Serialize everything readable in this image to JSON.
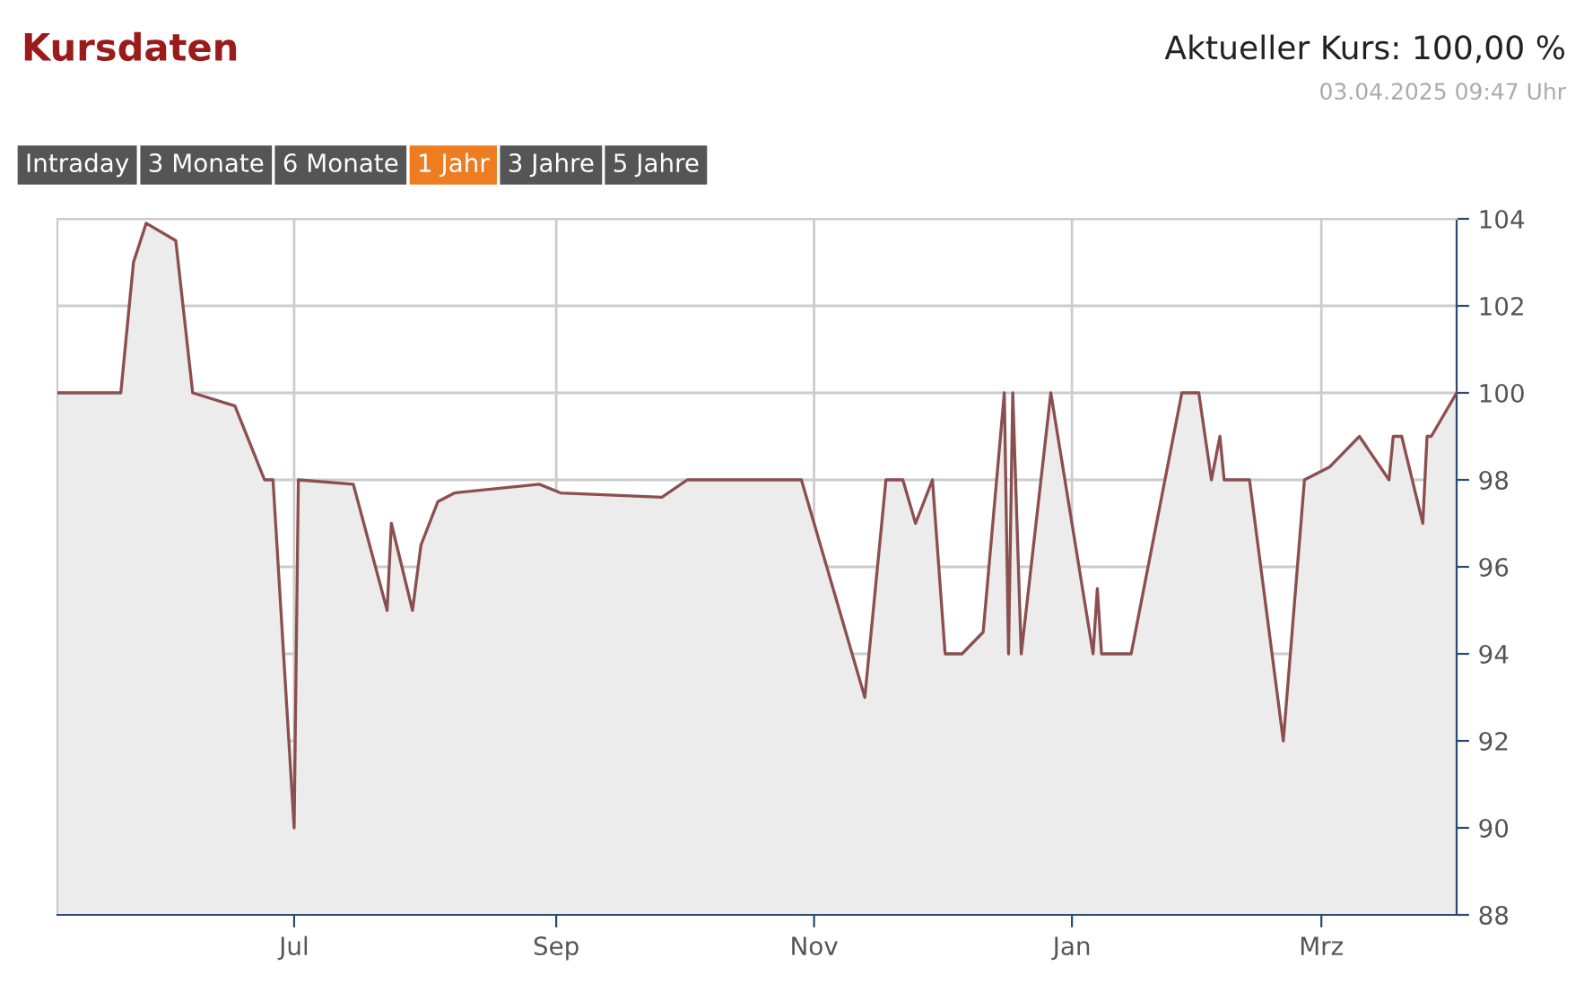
{
  "chart_data": {
    "type": "area",
    "title": "Kursdaten",
    "subtitle": "Aktueller Kurs: 100,00 %",
    "annotations": [
      "03.04.2025 09:47 Uhr",
      "Intraday",
      "3 Monate",
      "6 Monate",
      "1 Jahr",
      "3 Jahre",
      "5 Jahre"
    ],
    "series": [
      {
        "color": "#8b4f4f",
        "x": [
          "2024-05-06",
          "2024-05-21",
          "2024-05-24",
          "2024-05-27",
          "2024-06-03",
          "2024-06-07",
          "2024-06-17",
          "2024-06-24",
          "2024-06-26",
          "2024-07-01",
          "2024-07-02",
          "2024-07-15",
          "2024-07-23",
          "2024-07-24",
          "2024-07-29",
          "2024-07-31",
          "2024-08-04",
          "2024-08-08",
          "2024-08-28",
          "2024-09-02",
          "2024-09-26",
          "2024-10-02",
          "2024-10-29",
          "2024-11-13",
          "2024-11-18",
          "2024-11-22",
          "2024-11-25",
          "2024-11-29",
          "2024-12-02",
          "2024-12-06",
          "2024-12-11",
          "2024-12-16",
          "2024-12-17",
          "2024-12-18",
          "2024-12-20",
          "2024-12-27",
          "2025-01-06",
          "2025-01-07",
          "2025-01-08",
          "2025-01-15",
          "2025-01-27",
          "2025-01-31",
          "2025-02-03",
          "2025-02-05",
          "2025-02-06",
          "2025-02-12",
          "2025-02-20",
          "2025-02-25",
          "2025-03-03",
          "2025-03-10",
          "2025-03-17",
          "2025-03-18",
          "2025-03-20",
          "2025-03-25",
          "2025-03-26",
          "2025-03-27",
          "2025-04-02"
        ],
        "values": [
          100,
          100,
          103,
          103.9,
          103.5,
          100,
          99.7,
          98,
          98,
          90,
          98,
          97.9,
          95,
          97,
          95,
          96.5,
          97.5,
          97.7,
          97.9,
          97.7,
          97.6,
          98,
          98,
          93,
          98,
          98,
          97,
          98,
          94,
          94,
          94.5,
          100,
          94,
          100,
          94,
          100,
          94,
          95.5,
          94,
          94,
          100,
          100,
          98,
          99,
          98,
          98,
          92,
          98,
          98.3,
          99,
          98,
          99,
          99,
          97,
          99,
          99,
          100
        ]
      }
    ],
    "xlim": [
      "2024-05-06",
      "2025-04-02"
    ],
    "xticks": [
      {
        "value": "2024-07-01",
        "label": "Jul"
      },
      {
        "value": "2024-09-01",
        "label": "Sep"
      },
      {
        "value": "2024-11-01",
        "label": "Nov"
      },
      {
        "value": "2025-01-01",
        "label": "Jan"
      },
      {
        "value": "2025-03-01",
        "label": "Mrz"
      }
    ],
    "ylim": [
      88,
      104
    ],
    "yticks": [
      88,
      90,
      92,
      94,
      96,
      98,
      100,
      102,
      104
    ],
    "grid": true
  }
}
